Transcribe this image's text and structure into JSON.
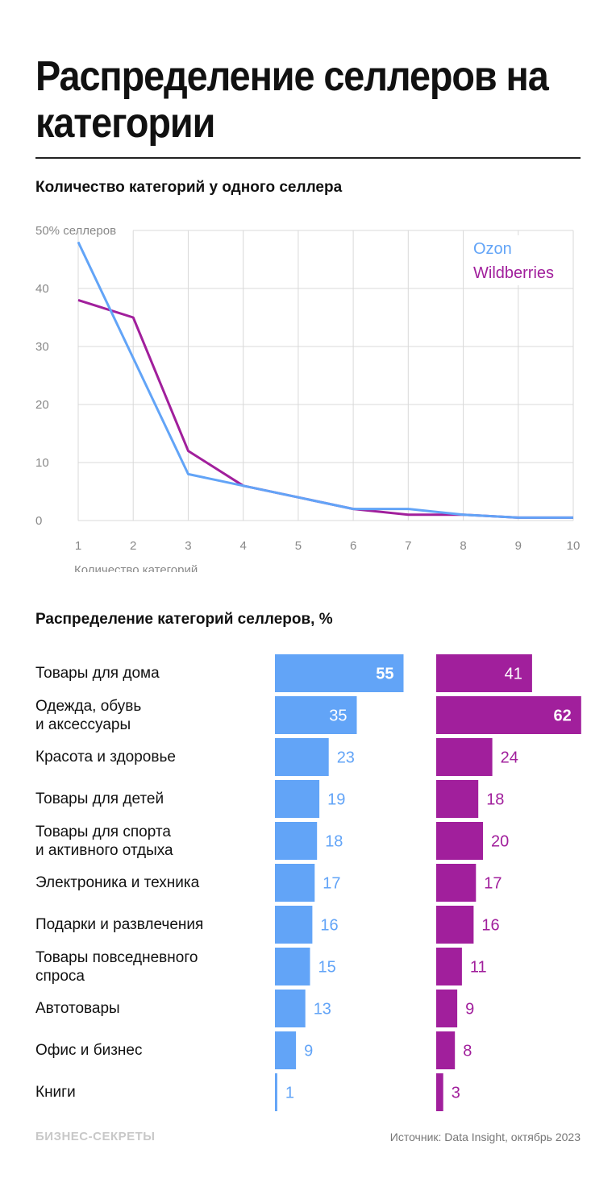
{
  "title": "Распределение селлеров на категории",
  "colors": {
    "ozon": "#62a4f7",
    "wildberries": "#a11f9c",
    "grid": "#d9d9d9",
    "axis_text": "#888888"
  },
  "chart_data": [
    {
      "type": "line",
      "title": "Количество категорий у одного селлера",
      "xlabel": "Количество категорий",
      "ylabel": "50% селлеров",
      "x": [
        1,
        2,
        3,
        4,
        5,
        6,
        7,
        8,
        9,
        10
      ],
      "xlim": [
        1,
        10
      ],
      "ylim": [
        0,
        50
      ],
      "yticks": [
        "0",
        "10",
        "20",
        "30",
        "40",
        "50% селлеров"
      ],
      "xticks": [
        "1",
        "2",
        "3",
        "4",
        "5",
        "6",
        "7",
        "8",
        "9",
        "10"
      ],
      "grid": true,
      "legend": "top-right",
      "series": [
        {
          "name": "Ozon",
          "values": [
            48,
            28,
            8,
            6,
            4,
            2,
            2,
            1,
            0.5,
            0.5
          ]
        },
        {
          "name": "Wildberries",
          "values": [
            38,
            35,
            12,
            6,
            4,
            2,
            1,
            1,
            0.5,
            0.5
          ]
        }
      ]
    },
    {
      "type": "bar",
      "title": "Распределение категорий селлеров, %",
      "categories": [
        "Товары для дома",
        "Одежда, обувь\nи аксессуары",
        "Красота и здоровье",
        "Товары для детей",
        "Товары для спорта\nи активного отдыха",
        "Электроника и техника",
        "Подарки и развлечения",
        "Товары повседневного\nспроса",
        "Автотовары",
        "Офис и бизнес",
        "Книги"
      ],
      "series": [
        {
          "name": "Ozon",
          "values": [
            55,
            35,
            23,
            19,
            18,
            17,
            16,
            15,
            13,
            9,
            1
          ]
        },
        {
          "name": "Wildberries",
          "values": [
            41,
            62,
            24,
            18,
            20,
            17,
            16,
            11,
            9,
            8,
            3
          ]
        }
      ]
    }
  ],
  "footer": {
    "logo": "БИЗНЕС-СЕКРЕТЫ",
    "source": "Источник: Data Insight, октябрь 2023"
  }
}
